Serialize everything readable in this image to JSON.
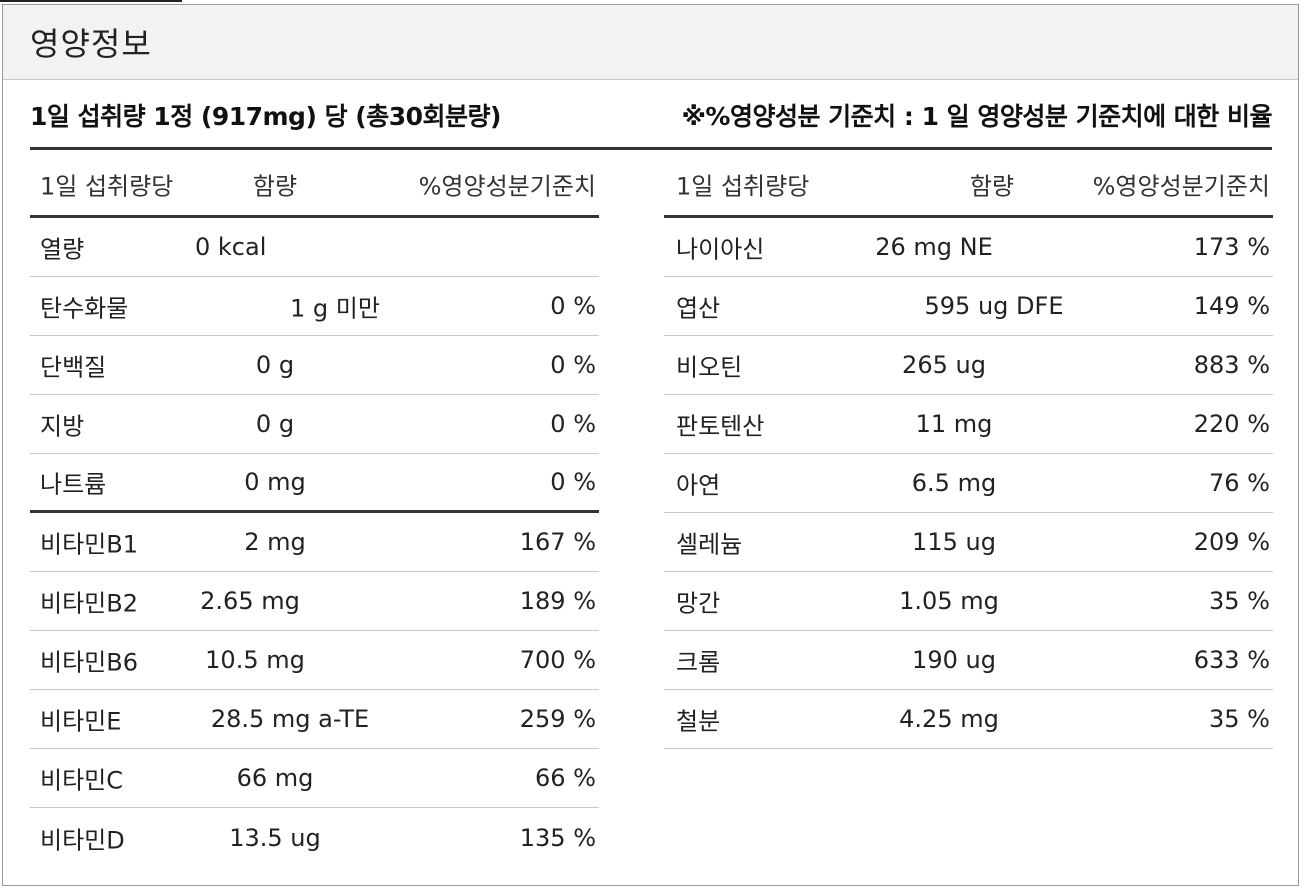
{
  "title": "영양정보",
  "subheading": {
    "serving": "1일 섭취량 1정 (917mg) 당 (총30회분량)",
    "note": "※%영양성분 기준치 : 1 일 영양성분 기준치에 대한 비율"
  },
  "columns": {
    "item": "1일 섭취량당",
    "amount": "함량",
    "daily_value": "%영양성분기준치"
  },
  "left_rows": [
    {
      "name": "열량",
      "amount": "0 kcal",
      "percent": ""
    },
    {
      "name": "탄수화물",
      "amount": "1 g 미만",
      "percent": "0 %"
    },
    {
      "name": "단백질",
      "amount": "0 g",
      "percent": "0 %"
    },
    {
      "name": "지방",
      "amount": "0 g",
      "percent": "0 %"
    },
    {
      "name": "나트륨",
      "amount": "0 mg",
      "percent": "0 %"
    },
    {
      "name": "비타민B1",
      "amount": "2 mg",
      "percent": "167 %"
    },
    {
      "name": "비타민B2",
      "amount": "2.65 mg",
      "percent": "189 %"
    },
    {
      "name": "비타민B6",
      "amount": "10.5 mg",
      "percent": "700 %"
    },
    {
      "name": "비타민E",
      "amount": "28.5 mg a-TE",
      "percent": "259 %"
    },
    {
      "name": "비타민C",
      "amount": "66 mg",
      "percent": "66 %"
    },
    {
      "name": "비타민D",
      "amount": "13.5 ug",
      "percent": "135 %"
    }
  ],
  "right_rows": [
    {
      "name": "나이아신",
      "amount": "26 mg NE",
      "percent": "173 %"
    },
    {
      "name": "엽산",
      "amount": "595 ug DFE",
      "percent": "149 %"
    },
    {
      "name": "비오틴",
      "amount": "265 ug",
      "percent": "883 %"
    },
    {
      "name": "판토텐산",
      "amount": "11 mg",
      "percent": "220 %"
    },
    {
      "name": "아연",
      "amount": "6.5 mg",
      "percent": "76 %"
    },
    {
      "name": "셀레늄",
      "amount": "115 ug",
      "percent": "209 %"
    },
    {
      "name": "망간",
      "amount": "1.05 mg",
      "percent": "35 %"
    },
    {
      "name": "크롬",
      "amount": "190 ug",
      "percent": "633 %"
    },
    {
      "name": "철분",
      "amount": "4.25 mg",
      "percent": "35 %"
    }
  ]
}
